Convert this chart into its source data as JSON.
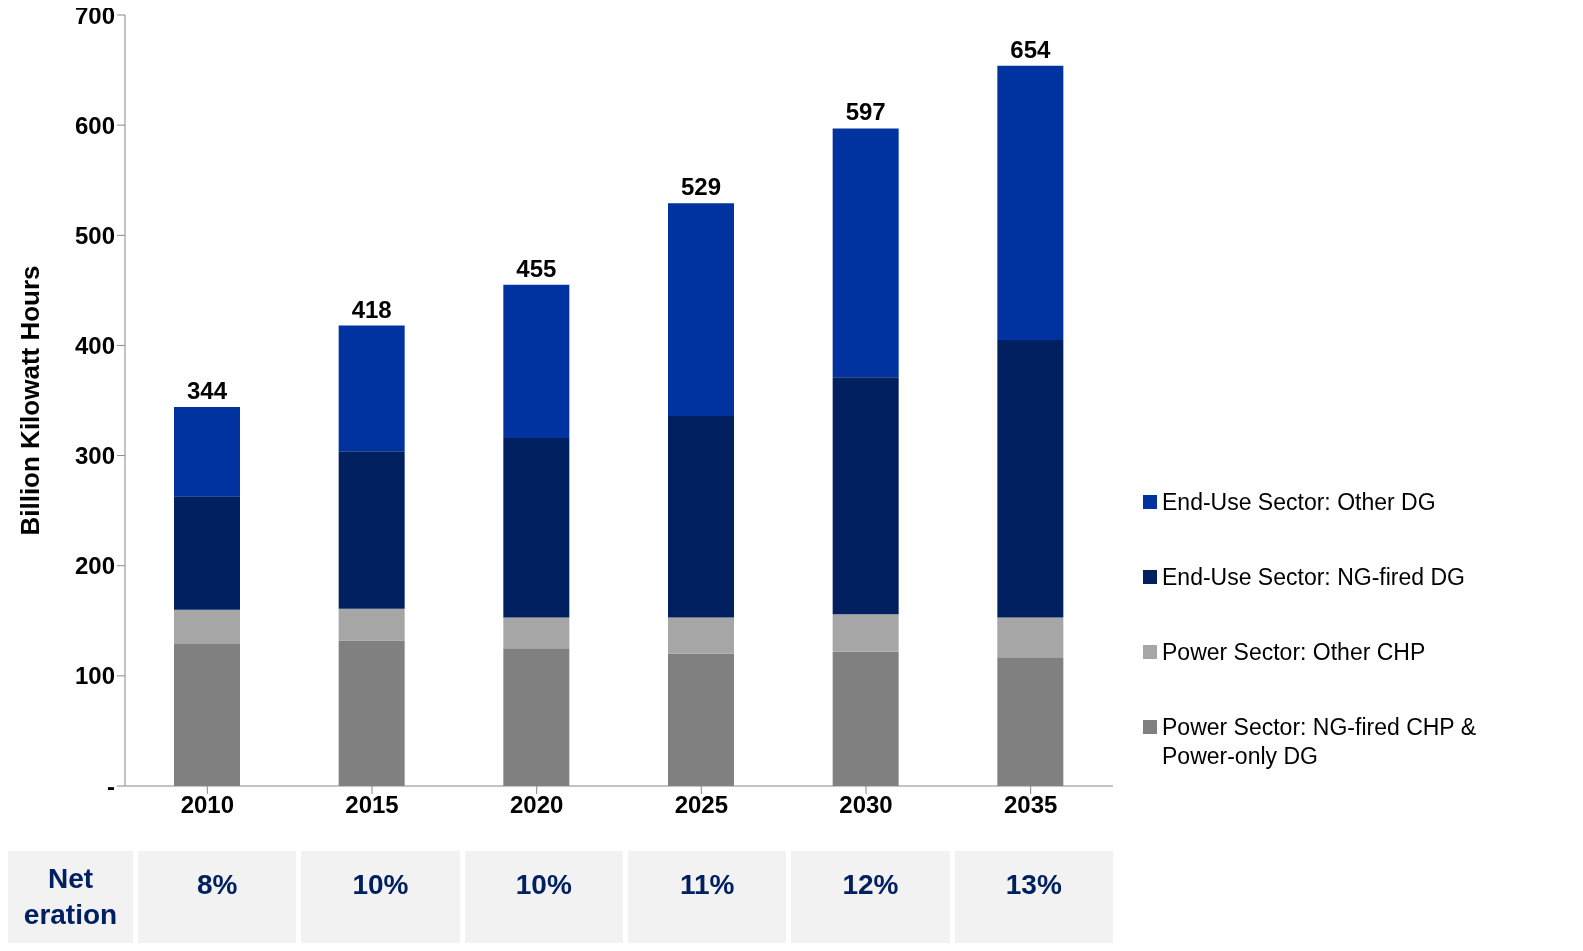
{
  "chart_data": {
    "type": "bar",
    "stacked": true,
    "ylabel": "Billion Kilowatt Hours",
    "categories": [
      "2010",
      "2015",
      "2020",
      "2025",
      "2030",
      "2035"
    ],
    "series": [
      {
        "name": "Power Sector: NG-fired CHP & Power-only DG",
        "color": "#808080",
        "values": [
          129,
          132,
          125,
          120,
          122,
          117
        ]
      },
      {
        "name": "Power Sector: Other CHP",
        "color": "#a6a6a6",
        "values": [
          31,
          29,
          28,
          33,
          34,
          36
        ]
      },
      {
        "name": "End-Use Sector: NG-fired DG",
        "color": "#002060",
        "values": [
          103,
          143,
          163,
          183,
          215,
          252
        ]
      },
      {
        "name": "End-Use Sector: Other DG",
        "color": "#0033a0",
        "values": [
          81,
          114,
          139,
          193,
          226,
          249
        ]
      }
    ],
    "totals": [
      "344",
      "418",
      "455",
      "529",
      "597",
      "654"
    ],
    "ylim": [
      0,
      700
    ],
    "yticks": [
      {
        "value": 0,
        "label": "-"
      },
      100,
      200,
      300,
      400,
      500,
      600,
      700
    ],
    "grid": false,
    "legend": "right",
    "annotations": [
      "Net eration",
      "8%",
      "10%",
      "10%",
      "11%",
      "12%",
      "13%"
    ]
  }
}
